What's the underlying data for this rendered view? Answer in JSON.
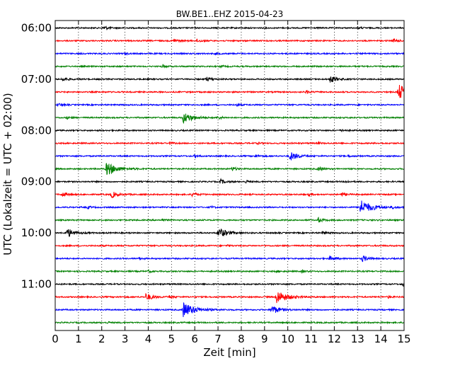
{
  "chart_data": {
    "type": "line",
    "title": "BW.BE1..EHZ 2015-04-23",
    "xlabel": "Zeit  [min]",
    "ylabel": "UTC (Lokalzeit = UTC + 02:00)",
    "xlim": [
      0,
      15
    ],
    "x_ticks": [
      "0",
      "1",
      "2",
      "3",
      "4",
      "5",
      "6",
      "7",
      "8",
      "9",
      "10",
      "11",
      "12",
      "13",
      "14",
      "15"
    ],
    "y_ticks": [
      "06:00",
      "07:00",
      "08:00",
      "09:00",
      "10:00",
      "11:00"
    ],
    "grid": "vertical dotted",
    "trace_interval_min": 15,
    "start_time": "06:00",
    "trace_colors": [
      "#000000",
      "#ff0000",
      "#0000ff",
      "#008000"
    ],
    "series": [
      {
        "start": "06:00",
        "events": [
          {
            "t": 2.1,
            "amp": 0.25
          },
          {
            "t": 13.0,
            "amp": 0.15
          }
        ]
      },
      {
        "start": "06:15",
        "events": [
          {
            "t": 5.1,
            "amp": 0.25
          },
          {
            "t": 6.1,
            "amp": 0.2
          },
          {
            "t": 14.55,
            "amp": 0.25
          }
        ]
      },
      {
        "start": "06:30",
        "events": [
          {
            "t": 3.0,
            "amp": 0.12
          },
          {
            "t": 6.9,
            "amp": 0.12
          }
        ]
      },
      {
        "start": "06:45",
        "events": [
          {
            "t": 4.6,
            "amp": 0.15
          },
          {
            "t": 7.1,
            "amp": 0.12
          }
        ]
      },
      {
        "start": "07:00",
        "events": [
          {
            "t": 0.3,
            "amp": 0.3
          },
          {
            "t": 6.5,
            "amp": 0.3
          },
          {
            "t": 11.8,
            "amp": 0.45
          }
        ]
      },
      {
        "start": "07:15",
        "events": [
          {
            "t": 10.8,
            "amp": 0.2
          },
          {
            "t": 14.75,
            "amp": 1.0
          }
        ]
      },
      {
        "start": "07:30",
        "events": [
          {
            "t": 0.1,
            "amp": 0.2
          },
          {
            "t": 7.8,
            "amp": 0.12
          }
        ]
      },
      {
        "start": "07:45",
        "events": [
          {
            "t": 0.5,
            "amp": 0.15
          },
          {
            "t": 5.5,
            "amp": 0.75
          },
          {
            "t": 7.0,
            "amp": 0.2
          }
        ]
      },
      {
        "start": "08:00",
        "events": [
          {
            "t": 12.3,
            "amp": 0.15
          }
        ]
      },
      {
        "start": "08:15",
        "events": [
          {
            "t": 4.9,
            "amp": 0.15
          },
          {
            "t": 8.7,
            "amp": 0.12
          },
          {
            "t": 11.3,
            "amp": 0.12
          }
        ]
      },
      {
        "start": "08:30",
        "events": [
          {
            "t": 6.0,
            "amp": 0.2
          },
          {
            "t": 8.6,
            "amp": 0.2
          },
          {
            "t": 10.1,
            "amp": 0.6
          },
          {
            "t": 12.6,
            "amp": 0.15
          }
        ]
      },
      {
        "start": "08:45",
        "events": [
          {
            "t": 2.2,
            "amp": 0.9
          },
          {
            "t": 7.6,
            "amp": 0.25
          },
          {
            "t": 11.3,
            "amp": 0.25
          }
        ]
      },
      {
        "start": "09:00",
        "events": [
          {
            "t": 7.1,
            "amp": 0.3
          },
          {
            "t": 8.2,
            "amp": 0.15
          },
          {
            "t": 12.5,
            "amp": 0.15
          }
        ]
      },
      {
        "start": "09:15",
        "events": [
          {
            "t": 0.3,
            "amp": 0.3
          },
          {
            "t": 2.4,
            "amp": 0.45
          },
          {
            "t": 5.9,
            "amp": 0.3
          },
          {
            "t": 10.9,
            "amp": 0.15
          },
          {
            "t": 12.3,
            "amp": 0.25
          }
        ]
      },
      {
        "start": "09:30",
        "events": [
          {
            "t": 1.4,
            "amp": 0.15
          },
          {
            "t": 6.7,
            "amp": 0.12
          },
          {
            "t": 13.1,
            "amp": 1.0
          },
          {
            "t": 14.5,
            "amp": 0.15
          }
        ]
      },
      {
        "start": "09:45",
        "events": [
          {
            "t": 4.6,
            "amp": 0.12
          },
          {
            "t": 11.3,
            "amp": 0.3
          }
        ]
      },
      {
        "start": "10:00",
        "events": [
          {
            "t": 0.5,
            "amp": 0.6
          },
          {
            "t": 7.0,
            "amp": 0.7
          },
          {
            "t": 11.5,
            "amp": 0.2
          }
        ]
      },
      {
        "start": "10:15",
        "events": [
          {
            "t": 7.4,
            "amp": 0.12
          }
        ]
      },
      {
        "start": "10:30",
        "events": [
          {
            "t": 3.6,
            "amp": 0.15
          },
          {
            "t": 11.8,
            "amp": 0.3
          },
          {
            "t": 13.2,
            "amp": 0.4
          }
        ]
      },
      {
        "start": "10:45",
        "events": [
          {
            "t": 4.0,
            "amp": 0.15
          },
          {
            "t": 9.5,
            "amp": 0.12
          },
          {
            "t": 10.6,
            "amp": 0.15
          }
        ]
      },
      {
        "start": "11:00",
        "events": [
          {
            "t": 14.95,
            "amp": 0.35
          }
        ]
      },
      {
        "start": "11:15",
        "events": [
          {
            "t": 3.9,
            "amp": 0.5
          },
          {
            "t": 4.9,
            "amp": 0.2
          },
          {
            "t": 9.5,
            "amp": 0.9
          },
          {
            "t": 14.3,
            "amp": 0.15
          }
        ]
      },
      {
        "start": "11:30",
        "events": [
          {
            "t": 5.5,
            "amp": 1.0
          },
          {
            "t": 9.3,
            "amp": 0.6
          }
        ]
      },
      {
        "start": "11:45",
        "events": [
          {
            "t": 2.2,
            "amp": 0.12
          }
        ]
      }
    ]
  }
}
